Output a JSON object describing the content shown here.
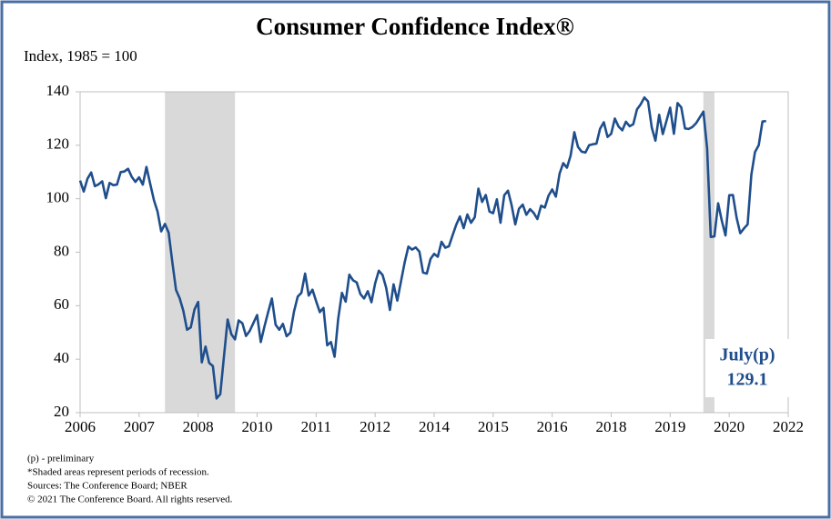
{
  "chart_data": {
    "type": "line",
    "title": "Consumer Confidence Index®",
    "y_label": "Index, 1985 = 100",
    "color": "#1f4e8c",
    "recession_color": "#d9d9d9",
    "recessions": [
      [
        2007.917,
        2009.5
      ],
      [
        2020.083,
        2020.333
      ]
    ],
    "x": [
      2006,
      2006.083,
      2006.167,
      2006.25,
      2006.333,
      2006.417,
      2006.5,
      2006.583,
      2006.667,
      2006.75,
      2006.833,
      2006.917,
      2007,
      2007.083,
      2007.167,
      2007.25,
      2007.333,
      2007.417,
      2007.5,
      2007.583,
      2007.667,
      2007.75,
      2007.833,
      2007.917,
      2008,
      2008.083,
      2008.167,
      2008.25,
      2008.333,
      2008.417,
      2008.5,
      2008.583,
      2008.667,
      2008.75,
      2008.833,
      2008.917,
      2009,
      2009.083,
      2009.167,
      2009.25,
      2009.333,
      2009.417,
      2009.5,
      2009.583,
      2009.667,
      2009.75,
      2009.833,
      2009.917,
      2010,
      2010.083,
      2010.167,
      2010.25,
      2010.333,
      2010.417,
      2010.5,
      2010.583,
      2010.667,
      2010.75,
      2010.833,
      2010.917,
      2011,
      2011.083,
      2011.167,
      2011.25,
      2011.333,
      2011.417,
      2011.5,
      2011.583,
      2011.667,
      2011.75,
      2011.833,
      2011.917,
      2012,
      2012.083,
      2012.167,
      2012.25,
      2012.333,
      2012.417,
      2012.5,
      2012.583,
      2012.667,
      2012.75,
      2012.833,
      2012.917,
      2013,
      2013.083,
      2013.167,
      2013.25,
      2013.333,
      2013.417,
      2013.5,
      2013.583,
      2013.667,
      2013.75,
      2013.833,
      2013.917,
      2014,
      2014.083,
      2014.167,
      2014.25,
      2014.333,
      2014.417,
      2014.5,
      2014.583,
      2014.667,
      2014.75,
      2014.833,
      2014.917,
      2015,
      2015.083,
      2015.167,
      2015.25,
      2015.333,
      2015.417,
      2015.5,
      2015.583,
      2015.667,
      2015.75,
      2015.833,
      2015.917,
      2016,
      2016.083,
      2016.167,
      2016.25,
      2016.333,
      2016.417,
      2016.5,
      2016.583,
      2016.667,
      2016.75,
      2016.833,
      2016.917,
      2017,
      2017.083,
      2017.167,
      2017.25,
      2017.333,
      2017.417,
      2017.5,
      2017.583,
      2017.667,
      2017.75,
      2017.833,
      2017.917,
      2018,
      2018.083,
      2018.167,
      2018.25,
      2018.333,
      2018.417,
      2018.5,
      2018.583,
      2018.667,
      2018.75,
      2018.833,
      2018.917,
      2019,
      2019.083,
      2019.167,
      2019.25,
      2019.333,
      2019.417,
      2019.5,
      2019.583,
      2019.667,
      2019.75,
      2019.833,
      2019.917,
      2020,
      2020.083,
      2020.167,
      2020.25,
      2020.333,
      2020.417,
      2020.5,
      2020.583,
      2020.667,
      2020.75,
      2020.833,
      2020.917,
      2021,
      2021.083,
      2021.167,
      2021.25,
      2021.333,
      2021.417,
      2021.5
    ],
    "values": [
      106.8,
      102.7,
      107.5,
      109.8,
      104.7,
      105.4,
      106.5,
      100.2,
      105.9,
      105.1,
      105.3,
      110.0,
      110.2,
      111.2,
      108.2,
      106.3,
      108.0,
      105.3,
      111.9,
      105.6,
      99.5,
      95.2,
      87.8,
      90.6,
      87.3,
      76.4,
      65.9,
      62.8,
      58.1,
      51.0,
      51.9,
      58.5,
      61.4,
      38.8,
      44.7,
      38.6,
      37.4,
      25.3,
      26.9,
      40.8,
      54.8,
      49.3,
      47.4,
      54.5,
      53.4,
      48.7,
      50.6,
      53.6,
      56.5,
      46.4,
      52.3,
      57.7,
      62.7,
      52.9,
      51.0,
      53.2,
      48.6,
      49.9,
      57.8,
      63.4,
      64.8,
      72.0,
      63.8,
      66.0,
      61.7,
      57.6,
      59.2,
      45.2,
      46.4,
      40.9,
      55.2,
      64.8,
      61.5,
      71.6,
      69.5,
      68.7,
      64.4,
      62.7,
      65.4,
      61.3,
      68.4,
      73.1,
      71.5,
      66.7,
      58.4,
      68.0,
      61.9,
      69.0,
      76.2,
      82.1,
      81.0,
      81.8,
      80.2,
      72.4,
      72.0,
      77.5,
      79.4,
      78.3,
      83.9,
      81.7,
      82.2,
      86.4,
      90.3,
      93.4,
      89.0,
      94.1,
      91.0,
      93.1,
      103.8,
      98.8,
      101.4,
      95.2,
      94.6,
      99.8,
      91.0,
      101.3,
      103.0,
      97.6,
      90.4,
      96.3,
      97.8,
      94.0,
      96.1,
      94.7,
      92.4,
      97.4,
      96.7,
      101.1,
      103.5,
      100.8,
      109.4,
      113.3,
      111.6,
      116.1,
      124.9,
      119.4,
      117.6,
      117.3,
      120.0,
      120.4,
      120.6,
      126.2,
      128.6,
      123.1,
      124.3,
      130.0,
      127.0,
      125.6,
      128.8,
      127.1,
      127.9,
      133.4,
      135.3,
      137.9,
      136.4,
      126.6,
      121.7,
      131.4,
      124.2,
      129.2,
      134.1,
      124.3,
      135.8,
      134.2,
      126.3,
      126.1,
      126.8,
      128.2,
      130.4,
      132.6,
      118.8,
      85.7,
      85.9,
      98.3,
      91.7,
      86.3,
      101.3,
      101.4,
      92.9,
      87.1,
      88.9,
      90.4,
      109.0,
      117.5,
      120.0,
      128.9,
      129.1
    ],
    "xlim": [
      2006,
      2022
    ],
    "xticks": [
      2006,
      {
        "value": 2007.333,
        "label": "2007"
      },
      {
        "value": 2008.667,
        "label": "2008"
      },
      2010,
      {
        "value": 2011.333,
        "label": "2011"
      },
      {
        "value": 2012.667,
        "label": "2012"
      },
      2014,
      {
        "value": 2015.333,
        "label": "2015"
      },
      {
        "value": 2016.667,
        "label": "2016"
      },
      2018,
      {
        "value": 2019.333,
        "label": "2019"
      },
      {
        "value": 2020.667,
        "label": "2020"
      },
      2022
    ],
    "ylim": [
      20,
      140
    ],
    "yticks": [
      20,
      40,
      60,
      80,
      100,
      120,
      140
    ],
    "grid": false,
    "annotation": [
      "July(p)",
      "129.1"
    ],
    "footnotes": [
      "(p) - preliminary",
      "*Shaded areas represent periods of recession.",
      "Sources: The Conference Board; NBER",
      "© 2021 The Conference Board. All rights reserved."
    ]
  }
}
